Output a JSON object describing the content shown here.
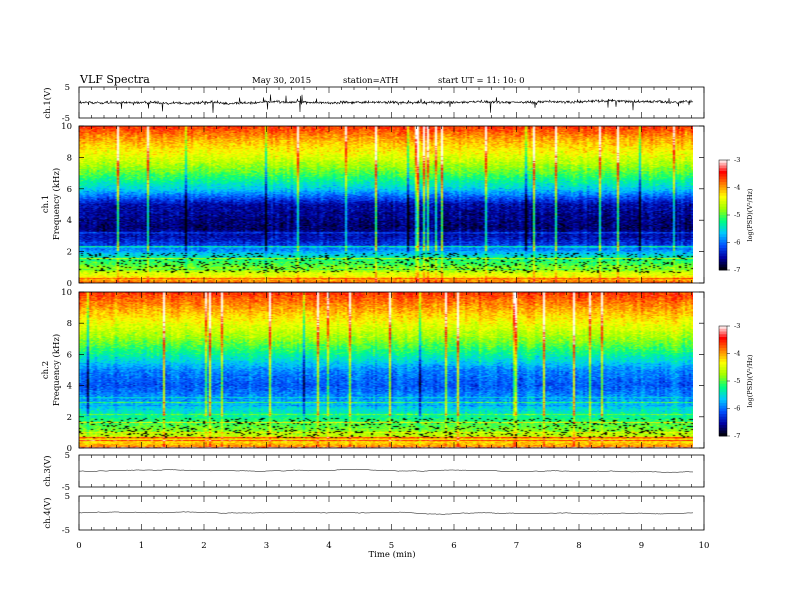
{
  "header": {
    "title": "VLF  Spectra",
    "date": "May 30, 2015",
    "station": "station=ATH",
    "start": "start  UT  =   11: 10: 0"
  },
  "chart_data": [
    {
      "type": "line",
      "panel": "ch1-waveform",
      "ylabel": "ch.1(V)",
      "ylim": [
        -5,
        5
      ],
      "yticks": [
        "5",
        "-5"
      ],
      "series": [
        {
          "name": "",
          "baseline_volts": 0.0,
          "noise_amplitude_volts": 1.5
        }
      ]
    },
    {
      "type": "heatmap",
      "panel": "ch1-spectrogram",
      "ylabel_line1": "ch.1",
      "ylabel_line2": "Frequency  (kHz)",
      "ylim": [
        0,
        10
      ],
      "yticks": [
        "0",
        "2",
        "4",
        "6",
        "8",
        "10"
      ],
      "xlim": [
        0,
        9.83
      ],
      "colorbar": {
        "label": "log(PSD)(V²/Hz)",
        "range": [
          -7,
          -3
        ],
        "ticks": [
          "-3",
          "-4",
          "-5",
          "-6",
          "-7"
        ],
        "colors": [
          "#000000",
          "#0000a0",
          "#0050ff",
          "#00c8ff",
          "#00ff80",
          "#a0ff00",
          "#ffff00",
          "#ff8000",
          "#ff0000",
          "#ffffff"
        ]
      },
      "profile_log_psd": [
        {
          "freq_khz": 0.0,
          "value": -3.8
        },
        {
          "freq_khz": 0.5,
          "value": -4.5
        },
        {
          "freq_khz": 1.5,
          "value": -5.3
        },
        {
          "freq_khz": 2.5,
          "value": -6.3
        },
        {
          "freq_khz": 3.5,
          "value": -6.7
        },
        {
          "freq_khz": 5.0,
          "value": -6.5
        },
        {
          "freq_khz": 6.0,
          "value": -5.6
        },
        {
          "freq_khz": 7.0,
          "value": -5.0
        },
        {
          "freq_khz": 8.0,
          "value": -4.5
        },
        {
          "freq_khz": 9.0,
          "value": -4.1
        },
        {
          "freq_khz": 10.0,
          "value": -3.6
        }
      ]
    },
    {
      "type": "heatmap",
      "panel": "ch2-spectrogram",
      "ylabel_line1": "ch.2",
      "ylabel_line2": "Frequency  (kHz)",
      "ylim": [
        0,
        10
      ],
      "yticks": [
        "0",
        "2",
        "4",
        "6",
        "8",
        "10"
      ],
      "xlim": [
        0,
        9.83
      ],
      "colorbar": {
        "label": "log(PSD)(V²/Hz)",
        "range": [
          -7,
          -3
        ],
        "ticks": [
          "-3",
          "-4",
          "-5",
          "-6",
          "-7"
        ],
        "colors": [
          "#000000",
          "#0000a0",
          "#0050ff",
          "#00c8ff",
          "#00ff80",
          "#a0ff00",
          "#ffff00",
          "#ff8000",
          "#ff0000",
          "#ffffff"
        ]
      },
      "profile_log_psd": [
        {
          "freq_khz": 0.0,
          "value": -3.9
        },
        {
          "freq_khz": 1.0,
          "value": -4.8
        },
        {
          "freq_khz": 2.0,
          "value": -5.3
        },
        {
          "freq_khz": 3.0,
          "value": -5.8
        },
        {
          "freq_khz": 4.0,
          "value": -6.1
        },
        {
          "freq_khz": 5.0,
          "value": -5.9
        },
        {
          "freq_khz": 6.0,
          "value": -5.3
        },
        {
          "freq_khz": 7.0,
          "value": -4.8
        },
        {
          "freq_khz": 8.0,
          "value": -4.4
        },
        {
          "freq_khz": 9.0,
          "value": -4.0
        },
        {
          "freq_khz": 10.0,
          "value": -3.6
        }
      ]
    },
    {
      "type": "line",
      "panel": "ch3-waveform",
      "ylabel": "ch.3(V)",
      "ylim": [
        -5,
        5
      ],
      "yticks": [
        "5",
        "-5"
      ],
      "series": [
        {
          "name": "",
          "baseline_volts": 0.0,
          "noise_amplitude_volts": 0.05
        }
      ]
    },
    {
      "type": "line",
      "panel": "ch4-waveform",
      "ylabel": "ch.4(V)",
      "ylim": [
        -5,
        5
      ],
      "yticks": [
        "5",
        "-5"
      ],
      "series": [
        {
          "name": "",
          "baseline_volts": 0.0,
          "noise_amplitude_volts": 0.02
        }
      ]
    }
  ],
  "x_axis": {
    "label": "Time  (min)",
    "range": [
      0,
      10
    ],
    "ticks": [
      "0",
      "1",
      "2",
      "3",
      "4",
      "5",
      "6",
      "7",
      "8",
      "9",
      "10"
    ],
    "data_end_min": 9.83
  },
  "dropout_band_khz": [
    0.6,
    1.9
  ]
}
